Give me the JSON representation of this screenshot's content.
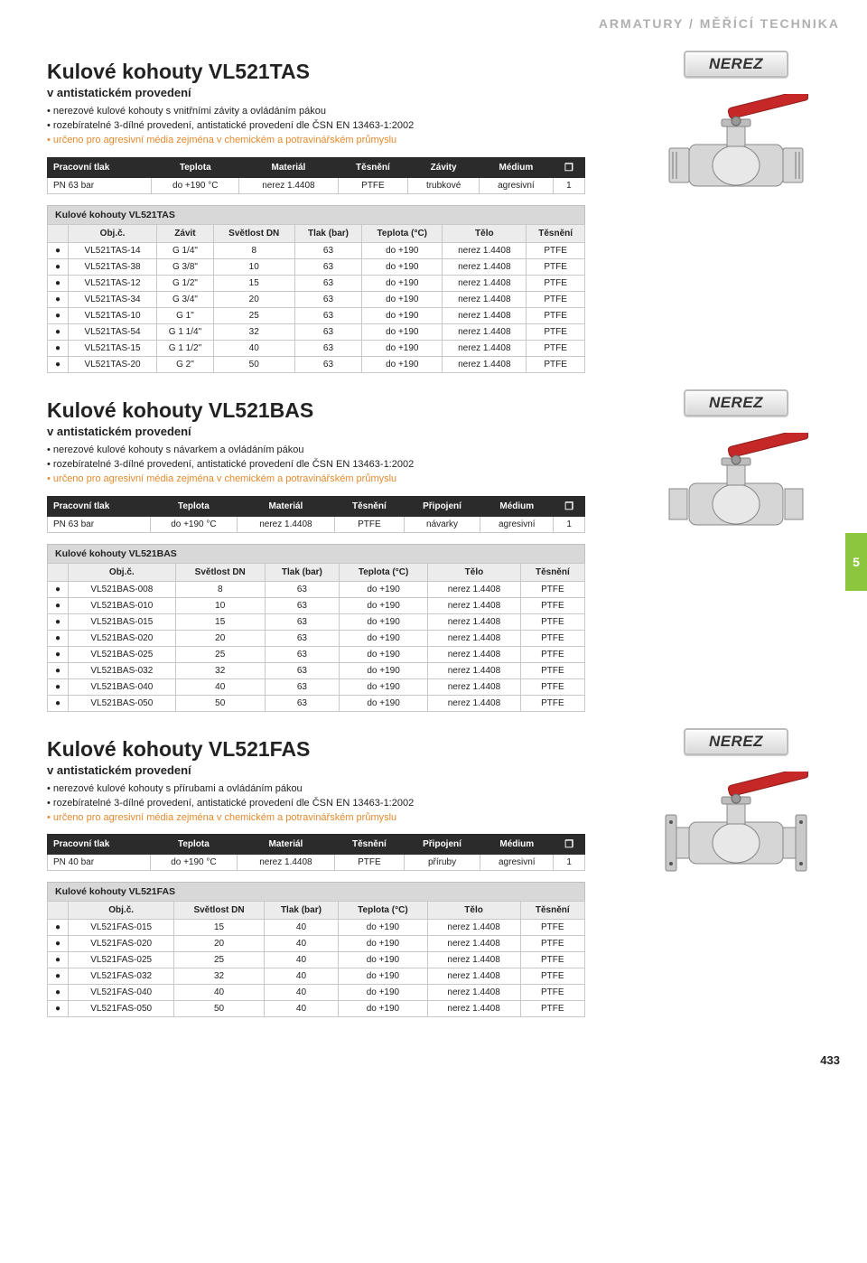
{
  "page": {
    "category": "ARMATURY / MĚŘÍCÍ TECHNIKA",
    "number": "433",
    "side_tab": "5"
  },
  "badges": {
    "nerez": "NEREZ"
  },
  "sections": [
    {
      "id": "tas",
      "title": "Kulové kohouty VL521TAS",
      "subtitle": "v antistatickém provedení",
      "bullets": [
        "• nerezové kulové kohouty s vnitřními závity a ovládáním pákou",
        "• rozebíratelné 3-dílné provedení, antistatické provedení dle ČSN EN 13463-1:2002"
      ],
      "accent_bullet": "• určeno pro agresivní média zejména v chemickém a potravinářském průmyslu",
      "spec_headers": [
        "Pracovní tlak",
        "Teplota",
        "Materiál",
        "Těsnění",
        "Závity",
        "Médium",
        ""
      ],
      "spec_values": [
        "PN 63 bar",
        "do +190 °C",
        "nerez 1.4408",
        "PTFE",
        "trubkové",
        "agresivní",
        "1"
      ],
      "table_caption": "Kulové kohouty VL521TAS",
      "cols": [
        "",
        "Obj.č.",
        "Závit",
        "Světlost DN",
        "Tlak (bar)",
        "Teplota (°C)",
        "Tělo",
        "Těsnění"
      ],
      "rows": [
        [
          "●",
          "VL521TAS-14",
          "G 1/4\"",
          "8",
          "63",
          "do +190",
          "nerez 1.4408",
          "PTFE"
        ],
        [
          "●",
          "VL521TAS-38",
          "G 3/8\"",
          "10",
          "63",
          "do +190",
          "nerez 1.4408",
          "PTFE"
        ],
        [
          "●",
          "VL521TAS-12",
          "G 1/2\"",
          "15",
          "63",
          "do +190",
          "nerez 1.4408",
          "PTFE"
        ],
        [
          "●",
          "VL521TAS-34",
          "G 3/4\"",
          "20",
          "63",
          "do +190",
          "nerez 1.4408",
          "PTFE"
        ],
        [
          "●",
          "VL521TAS-10",
          "G 1\"",
          "25",
          "63",
          "do +190",
          "nerez 1.4408",
          "PTFE"
        ],
        [
          "●",
          "VL521TAS-54",
          "G 1 1/4\"",
          "32",
          "63",
          "do +190",
          "nerez 1.4408",
          "PTFE"
        ],
        [
          "●",
          "VL521TAS-15",
          "G 1 1/2\"",
          "40",
          "63",
          "do +190",
          "nerez 1.4408",
          "PTFE"
        ],
        [
          "●",
          "VL521TAS-20",
          "G 2\"",
          "50",
          "63",
          "do +190",
          "nerez 1.4408",
          "PTFE"
        ]
      ]
    },
    {
      "id": "bas",
      "title": "Kulové kohouty VL521BAS",
      "subtitle": "v antistatickém provedení",
      "bullets": [
        "• nerezové kulové kohouty s návarkem a ovládáním pákou",
        "• rozebíratelné 3-dílné provedení, antistatické provedení dle ČSN EN 13463-1:2002"
      ],
      "accent_bullet": "• určeno pro agresivní média zejména v chemickém a potravinářském průmyslu",
      "spec_headers": [
        "Pracovní tlak",
        "Teplota",
        "Materiál",
        "Těsnění",
        "Připojení",
        "Médium",
        ""
      ],
      "spec_values": [
        "PN 63 bar",
        "do +190 °C",
        "nerez 1.4408",
        "PTFE",
        "návarky",
        "agresivní",
        "1"
      ],
      "table_caption": "Kulové kohouty VL521BAS",
      "cols": [
        "",
        "Obj.č.",
        "Světlost DN",
        "Tlak (bar)",
        "Teplota (°C)",
        "Tělo",
        "Těsnění"
      ],
      "rows": [
        [
          "●",
          "VL521BAS-008",
          "8",
          "63",
          "do +190",
          "nerez 1.4408",
          "PTFE"
        ],
        [
          "●",
          "VL521BAS-010",
          "10",
          "63",
          "do +190",
          "nerez 1.4408",
          "PTFE"
        ],
        [
          "●",
          "VL521BAS-015",
          "15",
          "63",
          "do +190",
          "nerez 1.4408",
          "PTFE"
        ],
        [
          "●",
          "VL521BAS-020",
          "20",
          "63",
          "do +190",
          "nerez 1.4408",
          "PTFE"
        ],
        [
          "●",
          "VL521BAS-025",
          "25",
          "63",
          "do +190",
          "nerez 1.4408",
          "PTFE"
        ],
        [
          "●",
          "VL521BAS-032",
          "32",
          "63",
          "do +190",
          "nerez 1.4408",
          "PTFE"
        ],
        [
          "●",
          "VL521BAS-040",
          "40",
          "63",
          "do +190",
          "nerez 1.4408",
          "PTFE"
        ],
        [
          "●",
          "VL521BAS-050",
          "50",
          "63",
          "do +190",
          "nerez 1.4408",
          "PTFE"
        ]
      ]
    },
    {
      "id": "fas",
      "title": "Kulové kohouty VL521FAS",
      "subtitle": "v antistatickém provedení",
      "bullets": [
        "• nerezové kulové kohouty s přírubami a ovládáním pákou",
        "• rozebíratelné 3-dílné provedení, antistatické provedení dle ČSN EN 13463-1:2002"
      ],
      "accent_bullet": "• určeno pro agresivní média zejména v chemickém a potravinářském průmyslu",
      "spec_headers": [
        "Pracovní tlak",
        "Teplota",
        "Materiál",
        "Těsnění",
        "Připojení",
        "Médium",
        ""
      ],
      "spec_values": [
        "PN 40 bar",
        "do +190 °C",
        "nerez 1.4408",
        "PTFE",
        "příruby",
        "agresivní",
        "1"
      ],
      "table_caption": "Kulové kohouty VL521FAS",
      "cols": [
        "",
        "Obj.č.",
        "Světlost DN",
        "Tlak (bar)",
        "Teplota (°C)",
        "Tělo",
        "Těsnění"
      ],
      "rows": [
        [
          "●",
          "VL521FAS-015",
          "15",
          "40",
          "do +190",
          "nerez 1.4408",
          "PTFE"
        ],
        [
          "●",
          "VL521FAS-020",
          "20",
          "40",
          "do +190",
          "nerez 1.4408",
          "PTFE"
        ],
        [
          "●",
          "VL521FAS-025",
          "25",
          "40",
          "do +190",
          "nerez 1.4408",
          "PTFE"
        ],
        [
          "●",
          "VL521FAS-032",
          "32",
          "40",
          "do +190",
          "nerez 1.4408",
          "PTFE"
        ],
        [
          "●",
          "VL521FAS-040",
          "40",
          "40",
          "do +190",
          "nerez 1.4408",
          "PTFE"
        ],
        [
          "●",
          "VL521FAS-050",
          "50",
          "40",
          "do +190",
          "nerez 1.4408",
          "PTFE"
        ]
      ]
    }
  ],
  "valve_svg": {
    "body_fill": "#d6d6d6",
    "body_stroke": "#888",
    "handle_fill": "#c62828",
    "flange_fill": "#c9c9c9"
  }
}
